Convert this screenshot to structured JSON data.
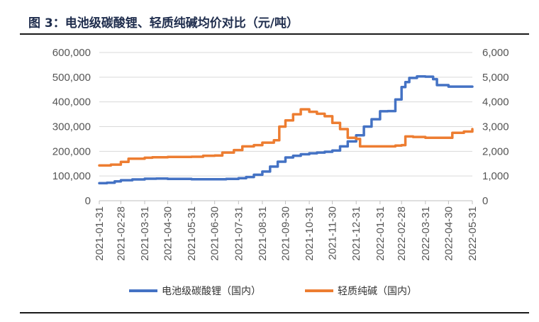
{
  "figure": {
    "title": "图 3：电池级碳酸锂、轻质纯碱均价对比（元/吨）"
  },
  "chart_data": {
    "type": "line",
    "title": "图 3：电池级碳酸锂、轻质纯碱均价对比（元/吨）",
    "xlabel": "",
    "ylabel_left": "",
    "ylabel_right": "",
    "x_ticks": [
      "2021-01-31",
      "2021-02-28",
      "2021-03-31",
      "2021-04-30",
      "2021-05-31",
      "2021-06-30",
      "2021-07-31",
      "2021-08-31",
      "2021-09-30",
      "2021-10-31",
      "2021-11-30",
      "2021-12-31",
      "2022-01-31",
      "2022-02-28",
      "2022-03-31",
      "2022-04-30",
      "2022-05-31"
    ],
    "x_range": [
      "2021-01-31",
      "2022-05-31"
    ],
    "y_left": {
      "range": [
        0,
        600000
      ],
      "ticks": [
        "0",
        "100,000",
        "200,000",
        "300,000",
        "400,000",
        "500,000",
        "600,000"
      ]
    },
    "y_right": {
      "range": [
        0,
        6000
      ],
      "ticks": [
        "0",
        "1,000",
        "2,000",
        "3,000",
        "4,000",
        "5,000",
        "6,000"
      ]
    },
    "grid": true,
    "legend_position": "bottom",
    "series": [
      {
        "name": "电池级碳酸锂（国内）",
        "axis": "left",
        "color": "#4472c4",
        "points": [
          [
            "2021-01-31",
            71000
          ],
          [
            "2021-02-10",
            73000
          ],
          [
            "2021-02-20",
            78000
          ],
          [
            "2021-02-28",
            83000
          ],
          [
            "2021-03-15",
            86000
          ],
          [
            "2021-03-31",
            89000
          ],
          [
            "2021-04-15",
            90000
          ],
          [
            "2021-04-30",
            88000
          ],
          [
            "2021-05-31",
            87000
          ],
          [
            "2021-06-30",
            87000
          ],
          [
            "2021-07-15",
            88000
          ],
          [
            "2021-07-31",
            91000
          ],
          [
            "2021-08-10",
            96000
          ],
          [
            "2021-08-20",
            105000
          ],
          [
            "2021-08-31",
            118000
          ],
          [
            "2021-09-10",
            138000
          ],
          [
            "2021-09-20",
            158000
          ],
          [
            "2021-09-30",
            175000
          ],
          [
            "2021-10-10",
            182000
          ],
          [
            "2021-10-20",
            188000
          ],
          [
            "2021-10-31",
            192000
          ],
          [
            "2021-11-10",
            195000
          ],
          [
            "2021-11-20",
            198000
          ],
          [
            "2021-11-30",
            203000
          ],
          [
            "2021-12-10",
            220000
          ],
          [
            "2021-12-20",
            240000
          ],
          [
            "2021-12-31",
            265000
          ],
          [
            "2022-01-10",
            300000
          ],
          [
            "2022-01-20",
            330000
          ],
          [
            "2022-01-31",
            362000
          ],
          [
            "2022-02-10",
            363000
          ],
          [
            "2022-02-20",
            410000
          ],
          [
            "2022-02-28",
            460000
          ],
          [
            "2022-03-05",
            480000
          ],
          [
            "2022-03-10",
            497000
          ],
          [
            "2022-03-20",
            503000
          ],
          [
            "2022-03-31",
            502000
          ],
          [
            "2022-04-10",
            492000
          ],
          [
            "2022-04-15",
            468000
          ],
          [
            "2022-04-30",
            462000
          ],
          [
            "2022-05-31",
            462000
          ]
        ]
      },
      {
        "name": "轻质纯碱（国内）",
        "axis": "right",
        "color": "#ed7d31",
        "points": [
          [
            "2021-01-31",
            1430
          ],
          [
            "2021-02-15",
            1460
          ],
          [
            "2021-02-28",
            1570
          ],
          [
            "2021-03-10",
            1700
          ],
          [
            "2021-03-31",
            1740
          ],
          [
            "2021-04-10",
            1760
          ],
          [
            "2021-04-30",
            1770
          ],
          [
            "2021-05-31",
            1780
          ],
          [
            "2021-06-15",
            1820
          ],
          [
            "2021-06-30",
            1830
          ],
          [
            "2021-07-10",
            1950
          ],
          [
            "2021-07-25",
            2050
          ],
          [
            "2021-08-05",
            2200
          ],
          [
            "2021-08-20",
            2250
          ],
          [
            "2021-08-31",
            2350
          ],
          [
            "2021-09-15",
            2450
          ],
          [
            "2021-09-22",
            3000
          ],
          [
            "2021-09-30",
            3250
          ],
          [
            "2021-10-10",
            3500
          ],
          [
            "2021-10-20",
            3700
          ],
          [
            "2021-10-31",
            3600
          ],
          [
            "2021-11-10",
            3520
          ],
          [
            "2021-11-20",
            3420
          ],
          [
            "2021-11-30",
            3150
          ],
          [
            "2021-12-10",
            2900
          ],
          [
            "2021-12-20",
            2550
          ],
          [
            "2021-12-31",
            2500
          ],
          [
            "2022-01-05",
            2200
          ],
          [
            "2022-01-31",
            2200
          ],
          [
            "2022-02-20",
            2230
          ],
          [
            "2022-02-28",
            2250
          ],
          [
            "2022-03-05",
            2600
          ],
          [
            "2022-03-15",
            2580
          ],
          [
            "2022-03-31",
            2550
          ],
          [
            "2022-04-30",
            2550
          ],
          [
            "2022-05-05",
            2750
          ],
          [
            "2022-05-20",
            2800
          ],
          [
            "2022-05-31",
            2900
          ]
        ]
      }
    ]
  }
}
